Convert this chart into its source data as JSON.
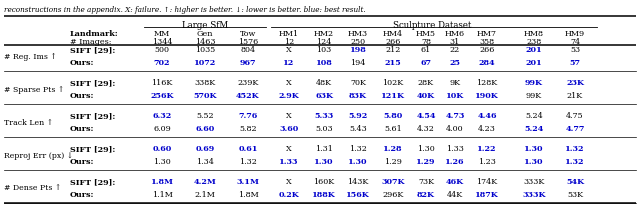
{
  "caption": "reconstructions in the appendix. X: failure. ↑: higher is better. ↓: lower is better. blue: best result.",
  "rows": [
    {
      "metric": "# Reg. Ims ↑",
      "sift": [
        "500",
        "1035",
        "804",
        "X",
        "103",
        "198",
        "212",
        "61",
        "22",
        "266",
        "201",
        "53"
      ],
      "ours": [
        "702",
        "1072",
        "967",
        "12",
        "108",
        "194",
        "215",
        "67",
        "25",
        "284",
        "201",
        "57"
      ],
      "sift_bold": [
        false,
        false,
        false,
        false,
        false,
        true,
        false,
        false,
        false,
        false,
        true,
        false
      ],
      "ours_bold": [
        true,
        true,
        true,
        true,
        true,
        false,
        true,
        true,
        true,
        true,
        true,
        true
      ]
    },
    {
      "metric": "# Sparse Pts ↑",
      "sift": [
        "116K",
        "338K",
        "239K",
        "X",
        "48K",
        "70K",
        "102K",
        "28K",
        "9K",
        "128K",
        "99K",
        "23K"
      ],
      "ours": [
        "256K",
        "570K",
        "452K",
        "2.9K",
        "63K",
        "83K",
        "121K",
        "40K",
        "10K",
        "190K",
        "99K",
        "21K"
      ],
      "sift_bold": [
        false,
        false,
        false,
        false,
        false,
        false,
        false,
        false,
        false,
        false,
        true,
        true
      ],
      "ours_bold": [
        true,
        true,
        true,
        true,
        true,
        true,
        true,
        true,
        true,
        true,
        false,
        false
      ]
    },
    {
      "metric": "Track Len ↑",
      "sift": [
        "6.32",
        "5.52",
        "7.76",
        "X",
        "5.33",
        "5.92",
        "5.80",
        "4.54",
        "4.73",
        "4.46",
        "5.24",
        "4.75"
      ],
      "ours": [
        "6.09",
        "6.60",
        "5.82",
        "3.60",
        "5.03",
        "5.43",
        "5.61",
        "4.32",
        "4.00",
        "4.23",
        "5.24",
        "4.77"
      ],
      "sift_bold": [
        true,
        false,
        true,
        false,
        true,
        true,
        true,
        true,
        true,
        true,
        false,
        false
      ],
      "ours_bold": [
        false,
        true,
        false,
        true,
        false,
        false,
        false,
        false,
        false,
        false,
        true,
        true
      ]
    },
    {
      "metric": "Reproj Err (px) ↓",
      "sift": [
        "0.60",
        "0.69",
        "0.61",
        "X",
        "1.31",
        "1.32",
        "1.28",
        "1.30",
        "1.33",
        "1.22",
        "1.30",
        "1.32"
      ],
      "ours": [
        "1.30",
        "1.34",
        "1.32",
        "1.33",
        "1.30",
        "1.30",
        "1.29",
        "1.29",
        "1.26",
        "1.23",
        "1.30",
        "1.32"
      ],
      "sift_bold": [
        true,
        true,
        true,
        false,
        false,
        false,
        true,
        false,
        false,
        true,
        true,
        true
      ],
      "ours_bold": [
        false,
        false,
        false,
        true,
        true,
        true,
        false,
        true,
        true,
        false,
        true,
        true
      ]
    },
    {
      "metric": "# Dense Pts ↑",
      "sift": [
        "1.8M",
        "4.2M",
        "3.1M",
        "X",
        "160K",
        "143K",
        "307K",
        "73K",
        "46K",
        "174K",
        "333K",
        "54K"
      ],
      "ours": [
        "1.1M",
        "2.1M",
        "1.8M",
        "0.2K",
        "188K",
        "156K",
        "296K",
        "82K",
        "44K",
        "187K",
        "333K",
        "53K"
      ],
      "sift_bold": [
        true,
        true,
        true,
        false,
        false,
        false,
        true,
        false,
        true,
        false,
        false,
        true
      ],
      "ours_bold": [
        false,
        false,
        false,
        true,
        true,
        true,
        false,
        true,
        false,
        true,
        true,
        false
      ]
    }
  ],
  "landmark_cols": [
    "MM",
    "Gen",
    "Tow",
    "HM1",
    "HM2",
    "HM3",
    "HM4",
    "HM5",
    "HM6",
    "HM7",
    "HM8",
    "HM9"
  ],
  "nimages": [
    "1344",
    "1463",
    "1576",
    "12",
    "124",
    "250",
    "266",
    "78",
    "31",
    "358",
    "238",
    "74"
  ],
  "blue": "#0000cc",
  "black": "#000000",
  "fig_width": 6.4,
  "fig_height": 2.14,
  "dpi": 100
}
